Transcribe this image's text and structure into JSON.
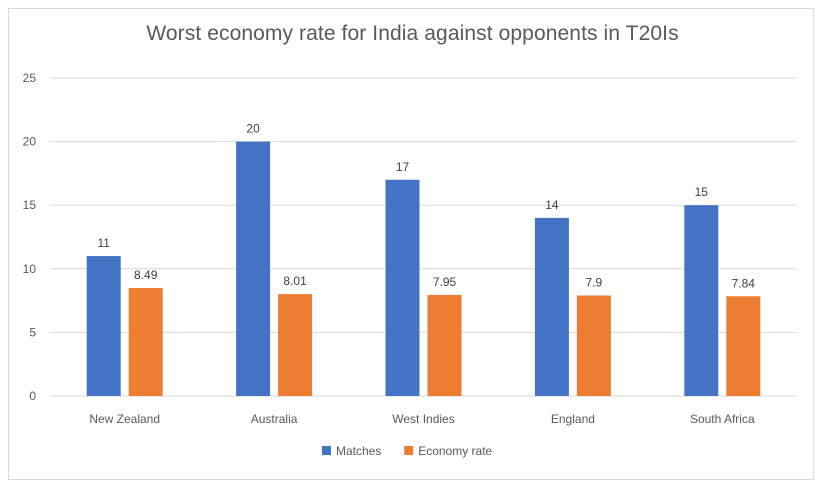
{
  "chart_data": {
    "type": "bar",
    "title": "Worst economy rate for India against opponents in T20Is",
    "xlabel": "",
    "ylabel": "",
    "categories": [
      "New Zealand",
      "Australia",
      "West Indies",
      "England",
      "South Africa"
    ],
    "series": [
      {
        "name": "Matches",
        "values": [
          11,
          20,
          17,
          14,
          15
        ],
        "labels": [
          "11",
          "20",
          "17",
          "14",
          "15"
        ],
        "color": "#4472c4"
      },
      {
        "name": "Economy rate",
        "values": [
          8.49,
          8.01,
          7.95,
          7.9,
          7.84
        ],
        "labels": [
          "8.49",
          "8.01",
          "7.95",
          "7.9",
          "7.84"
        ],
        "color": "#ed7d31"
      }
    ],
    "ylim": [
      0,
      25
    ],
    "yticks": [
      "0",
      "5",
      "10",
      "15",
      "20",
      "25"
    ],
    "grid": true,
    "legend_position": "bottom",
    "gridline_color": "#d9d9d9"
  }
}
